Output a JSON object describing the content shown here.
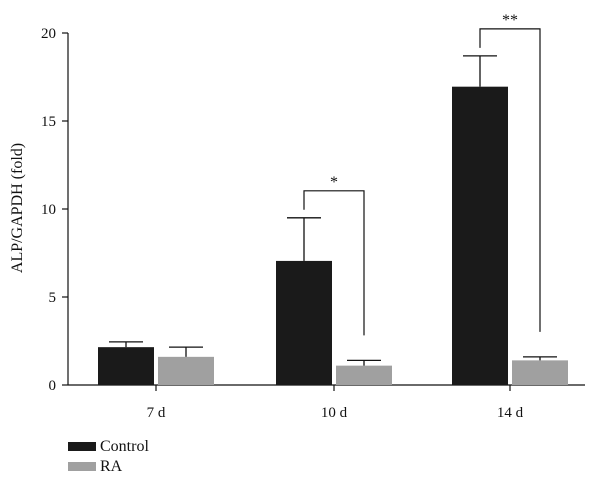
{
  "chart_data": {
    "type": "bar",
    "ylabel": "ALP/GAPDH (fold)",
    "xlabel": "",
    "ylim": [
      0,
      20
    ],
    "yticks": [
      0,
      5,
      10,
      15,
      20
    ],
    "categories": [
      "7 d",
      "10 d",
      "14 d"
    ],
    "series": [
      {
        "name": "Control",
        "color": "#1a1a1a",
        "values": [
          2.15,
          7.05,
          16.95
        ],
        "errors": [
          0.3,
          2.45,
          1.75
        ]
      },
      {
        "name": "RA",
        "color": "#a0a0a0",
        "values": [
          1.6,
          1.1,
          1.4
        ],
        "errors": [
          0.55,
          0.3,
          0.2
        ]
      }
    ],
    "significance": [
      {
        "category_index": 1,
        "label": "*"
      },
      {
        "category_index": 2,
        "label": "**"
      }
    ],
    "legend_position": "bottom-left"
  }
}
